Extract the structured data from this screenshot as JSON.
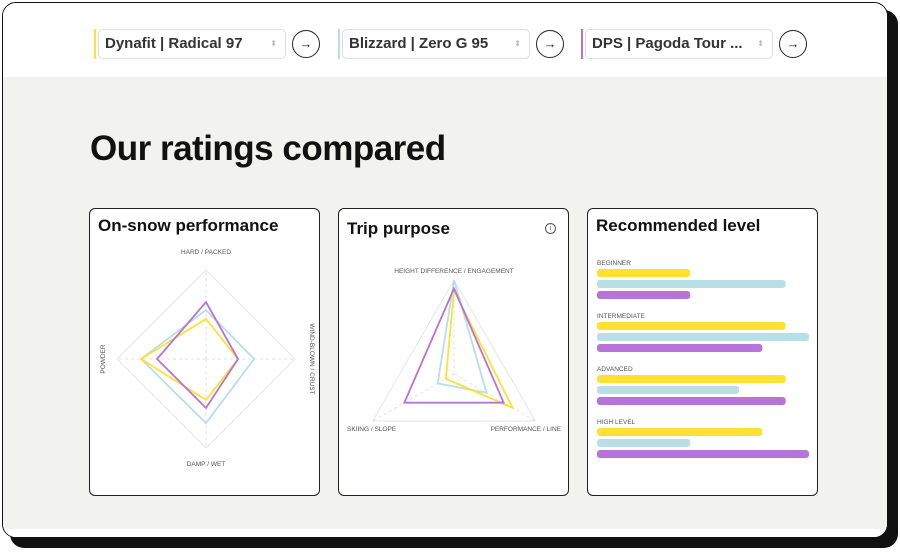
{
  "colors": {
    "ski1": "#ffe033",
    "ski2": "#b8dfe6",
    "ski3": "#b673d8",
    "background": "#f2f2ee"
  },
  "selectors": [
    {
      "label": "Dynafit | Radical 97",
      "color": "#ffe033"
    },
    {
      "label": "Blizzard | Zero G 95",
      "color": "#b8dfe6"
    },
    {
      "label": "DPS | Pagoda Tour ...",
      "color": "#b673d8"
    }
  ],
  "icons": {
    "select": "chevron-updown-icon",
    "go": "arrow-right-icon",
    "info": "info-icon"
  },
  "title": "Our ratings compared",
  "chart_data": [
    {
      "type": "radar",
      "title": "On-snow performance",
      "axes": [
        "HARD / PACKED",
        "WIND-BLOWN / CRUST",
        "DAMP / WET",
        "POWDER"
      ],
      "range": [
        0,
        1
      ],
      "series": [
        {
          "color": "#b8dfe6",
          "values": [
            0.55,
            0.54,
            0.72,
            0.73
          ]
        },
        {
          "color": "#ffe033",
          "values": [
            0.45,
            0.36,
            0.46,
            0.73
          ]
        },
        {
          "color": "#b673d8",
          "values": [
            0.64,
            0.36,
            0.55,
            0.55
          ]
        }
      ]
    },
    {
      "type": "radar",
      "title": "Trip purpose",
      "axes": [
        "HEIGHT DIFFERENCE / ENGAGEMENT",
        "PERFORMANCE / LINE",
        "SKIING / SLOPE"
      ],
      "range": [
        0,
        1
      ],
      "series": [
        {
          "color": "#b8dfe6",
          "values": [
            1.0,
            0.4,
            0.2
          ]
        },
        {
          "color": "#ffe033",
          "values": [
            0.89,
            0.72,
            0.1
          ]
        },
        {
          "color": "#b673d8",
          "values": [
            0.91,
            0.61,
            0.61
          ]
        }
      ]
    },
    {
      "type": "bar",
      "orientation": "horizontal",
      "title": "Recommended level",
      "categories": [
        "BEGINNER",
        "INTERMEDIATE",
        "ADVANCED",
        "HIGH LEVEL"
      ],
      "range": [
        0,
        1
      ],
      "series": [
        {
          "color": "#ffe033",
          "values": [
            0.44,
            0.89,
            0.89,
            0.78
          ]
        },
        {
          "color": "#b8dfe6",
          "values": [
            0.89,
            1.0,
            0.67,
            0.44
          ]
        },
        {
          "color": "#b673d8",
          "values": [
            0.44,
            0.78,
            0.89,
            1.0
          ]
        }
      ]
    }
  ]
}
